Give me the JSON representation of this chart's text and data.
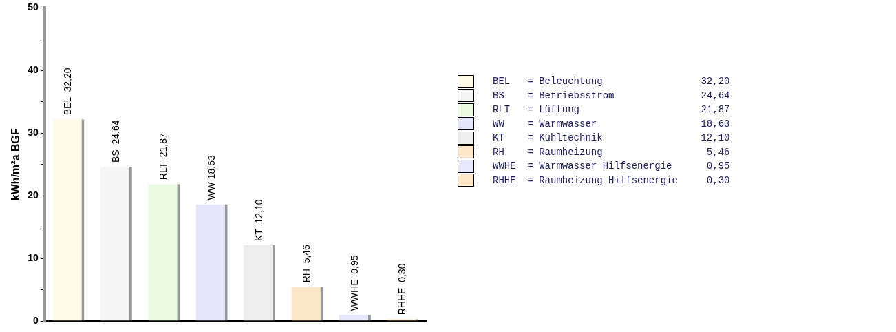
{
  "chart_data": {
    "type": "bar",
    "ylabel": "kWh/m²a BGF",
    "categories": [
      null,
      null,
      null,
      null,
      null,
      null,
      null,
      null
    ],
    "values": [
      32.2,
      24.64,
      21.87,
      18.63,
      12.1,
      5.46,
      0.95,
      0.3
    ],
    "value_labels": [
      "BEL  32,20",
      "BS  24,64",
      "RLT  21,87",
      "WW 18,63",
      "KT  12,10",
      "RH  5,46",
      "WWHE  0,95",
      "RHHE  0,30"
    ],
    "colors": [
      "#fffbe6",
      "#f5f5f5",
      "#eafbe4",
      "#e6e6fb",
      "#ededed",
      "#fbe6c8",
      "#e8e8fb",
      "#fbe6c8"
    ],
    "ylim": [
      0,
      50
    ],
    "yticks": [
      0,
      {
        "value": 5,
        "label": null
      },
      10,
      {
        "value": 15,
        "label": null
      },
      20,
      {
        "value": 25,
        "label": null
      },
      30,
      {
        "value": 35,
        "label": null
      },
      40,
      {
        "value": 45,
        "label": null
      },
      50
    ],
    "tick_labels": "y",
    "grid": false,
    "annotations": [
      "BEL   = Beleuchtung                 32,20",
      "BS    = Betriebsstrom               24,64",
      "RLT   = Lüftung                     21,87",
      "WW    = Warmwasser                  18,63",
      "KT    = Kühltechnik                 12,10",
      "RH    = Raumheizung                  5,46",
      "WWHE  = Warmwasser Hilfsenergie      0,95",
      "RHHE  = Raumheizung Hilfsenergie     0,30"
    ]
  }
}
